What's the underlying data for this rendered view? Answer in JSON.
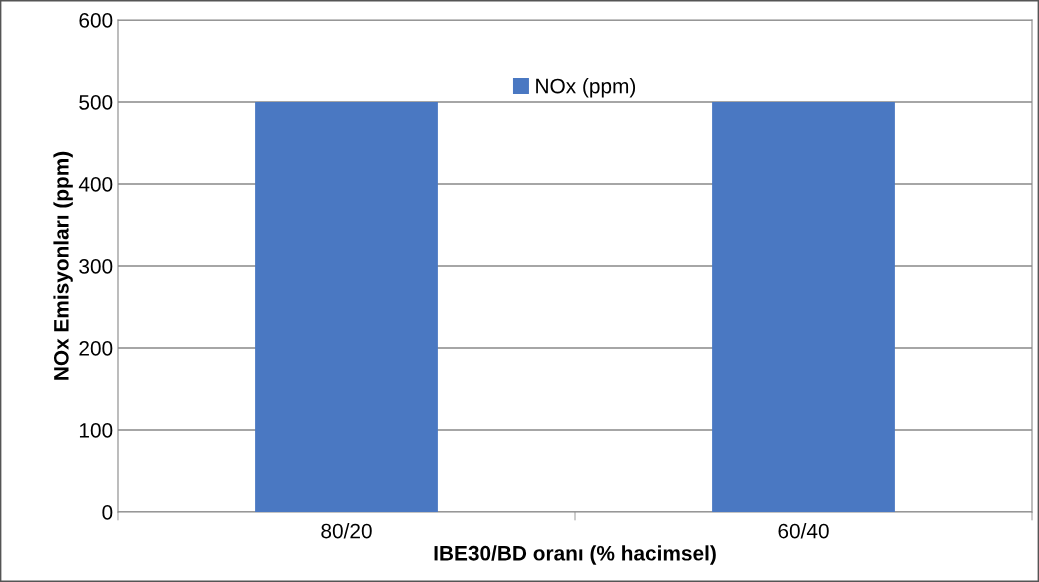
{
  "chart_data": {
    "type": "bar",
    "xlabel": "IBE30/BD oranı (% hacimsel)",
    "ylabel": "NOx Emisyonları (ppm)",
    "categories": [
      "80/20",
      "60/40"
    ],
    "series": [
      {
        "name": "NOx (ppm)",
        "color": "#4a78c2",
        "values": [
          500,
          500
        ]
      }
    ],
    "ylim": [
      0,
      600
    ],
    "yticks": [
      0,
      100,
      200,
      300,
      400,
      500,
      600
    ],
    "grid": "y",
    "legend": "top"
  }
}
